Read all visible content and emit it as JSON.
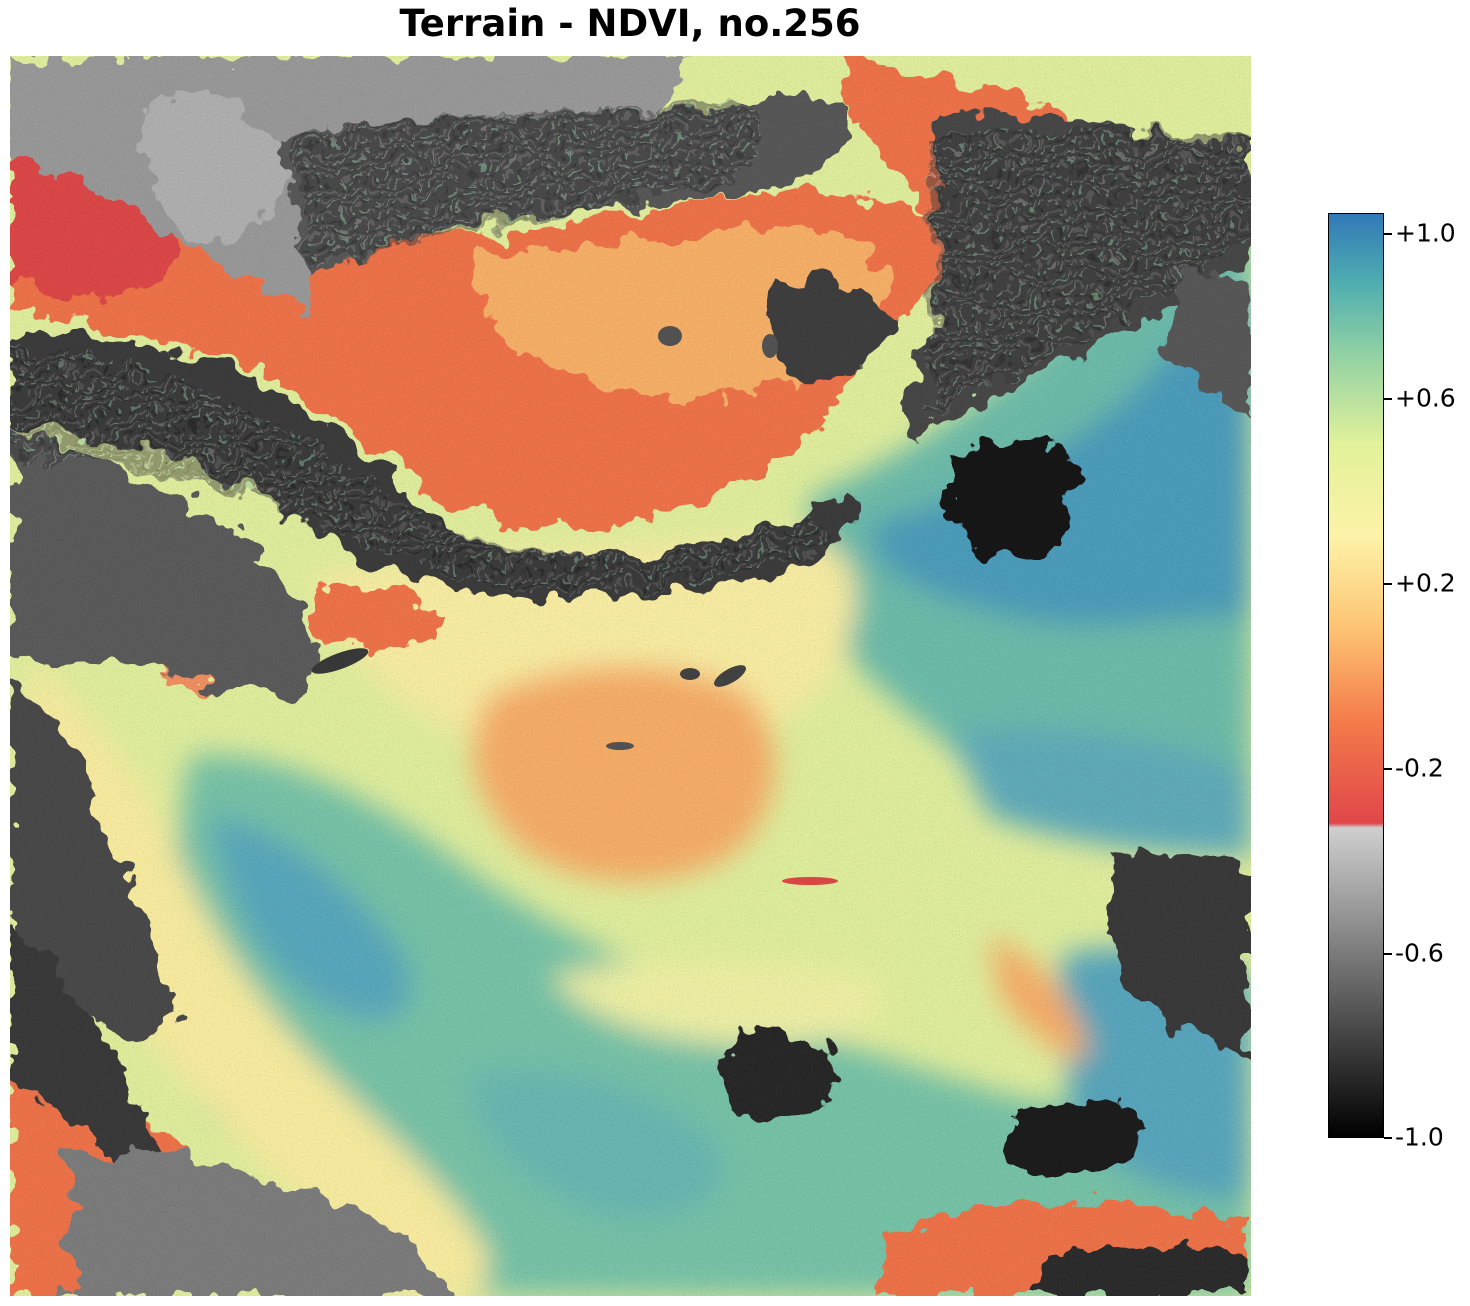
{
  "title": "Terrain - NDVI, no.256",
  "colorbar": {
    "range": [
      -1.0,
      1.0
    ],
    "ticks": [
      {
        "value": 1.0,
        "label": "+1.0"
      },
      {
        "value": 0.6,
        "label": "+0.6"
      },
      {
        "value": 0.2,
        "label": "+0.2"
      },
      {
        "value": -0.2,
        "label": "-0.2"
      },
      {
        "value": -0.6,
        "label": "-0.6"
      },
      {
        "value": -1.0,
        "label": "-1.0"
      }
    ],
    "colormap": {
      "negative_part": "grayscale, black at -1.0 to light gray near -0.33",
      "positive_part": "Spectral: red near -0.33 through orange, yellow, light green to blue at +1.0",
      "stops": [
        {
          "value": -1.0,
          "color": "#000000"
        },
        {
          "value": -0.33,
          "color": "#cfcfcf"
        },
        {
          "value": -0.32,
          "color": "#e0464a"
        },
        {
          "value": -0.1,
          "color": "#f47b4a"
        },
        {
          "value": 0.1,
          "color": "#fdc372"
        },
        {
          "value": 0.3,
          "color": "#fdf3a8"
        },
        {
          "value": 0.5,
          "color": "#e2f29a"
        },
        {
          "value": 0.7,
          "color": "#8fd0a4"
        },
        {
          "value": 0.85,
          "color": "#4faeb0"
        },
        {
          "value": 1.0,
          "color": "#3179b8"
        }
      ]
    }
  },
  "map": {
    "type": "raster",
    "description_colors": {
      "water_high": "#3179b8",
      "vegetation_mid": "#e2f29a",
      "dry_low": "#f47b4a",
      "cloud_dark": "#1a1a1a",
      "cloud_light": "#aaaaaa"
    }
  }
}
